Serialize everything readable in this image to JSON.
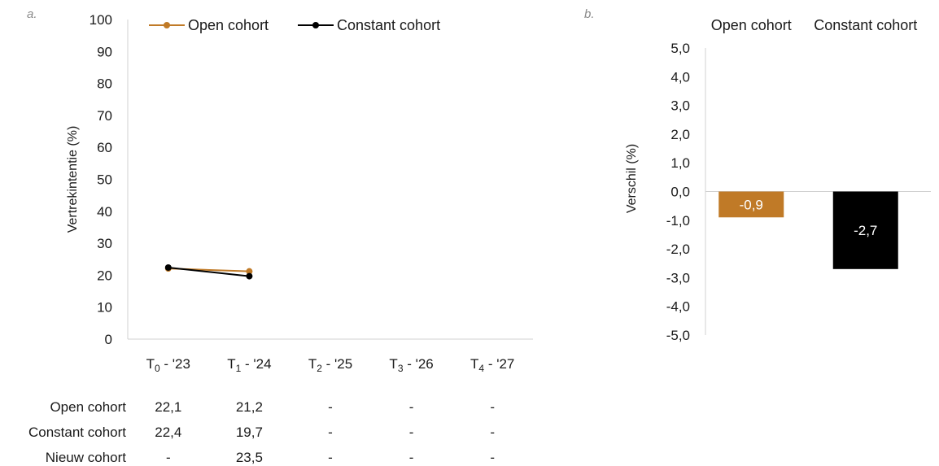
{
  "chart_data": [
    {
      "panel": "a.",
      "type": "line",
      "ylabel": "Vertrekintentie (%)",
      "ylim": [
        0,
        100
      ],
      "yticks": [
        "0",
        "10",
        "20",
        "30",
        "40",
        "50",
        "60",
        "70",
        "80",
        "90",
        "100"
      ],
      "categories": [
        {
          "main": "T",
          "sub": "0",
          "rest": " - '23"
        },
        {
          "main": "T",
          "sub": "1",
          "rest": " - '24"
        },
        {
          "main": "T",
          "sub": "2",
          "rest": " - '25"
        },
        {
          "main": "T",
          "sub": "3",
          "rest": " - '26"
        },
        {
          "main": "T",
          "sub": "4",
          "rest": " - '27"
        }
      ],
      "series": [
        {
          "name": "Open cohort",
          "color": "#c07a27",
          "values": [
            22.1,
            21.2,
            null,
            null,
            null
          ]
        },
        {
          "name": "Constant cohort",
          "color": "#000000",
          "values": [
            22.4,
            19.7,
            null,
            null,
            null
          ]
        }
      ],
      "legend_position": "top",
      "grid": false,
      "data_table": {
        "rows": [
          {
            "label": "Open cohort",
            "cells": [
              "22,1",
              "21,2",
              "-",
              "-",
              "-"
            ]
          },
          {
            "label": "Constant cohort",
            "cells": [
              "22,4",
              "19,7",
              "-",
              "-",
              "-"
            ]
          },
          {
            "label": "Nieuw cohort",
            "cells": [
              "-",
              "23,5",
              "-",
              "-",
              "-"
            ]
          }
        ]
      }
    },
    {
      "panel": "b.",
      "type": "bar",
      "ylabel": "Verschil (%)",
      "ylim": [
        -5,
        5
      ],
      "yticks": [
        "5,0",
        "4,0",
        "3,0",
        "2,0",
        "1,0",
        "0,0",
        "-1,0",
        "-2,0",
        "-3,0",
        "-4,0",
        "-5,0"
      ],
      "categories": [
        "Open cohort",
        "Constant cohort"
      ],
      "values": [
        -0.9,
        -2.7
      ],
      "value_labels": [
        "-0,9",
        "-2,7"
      ],
      "colors": [
        "#c07a27",
        "#000000"
      ],
      "grid": false
    }
  ]
}
